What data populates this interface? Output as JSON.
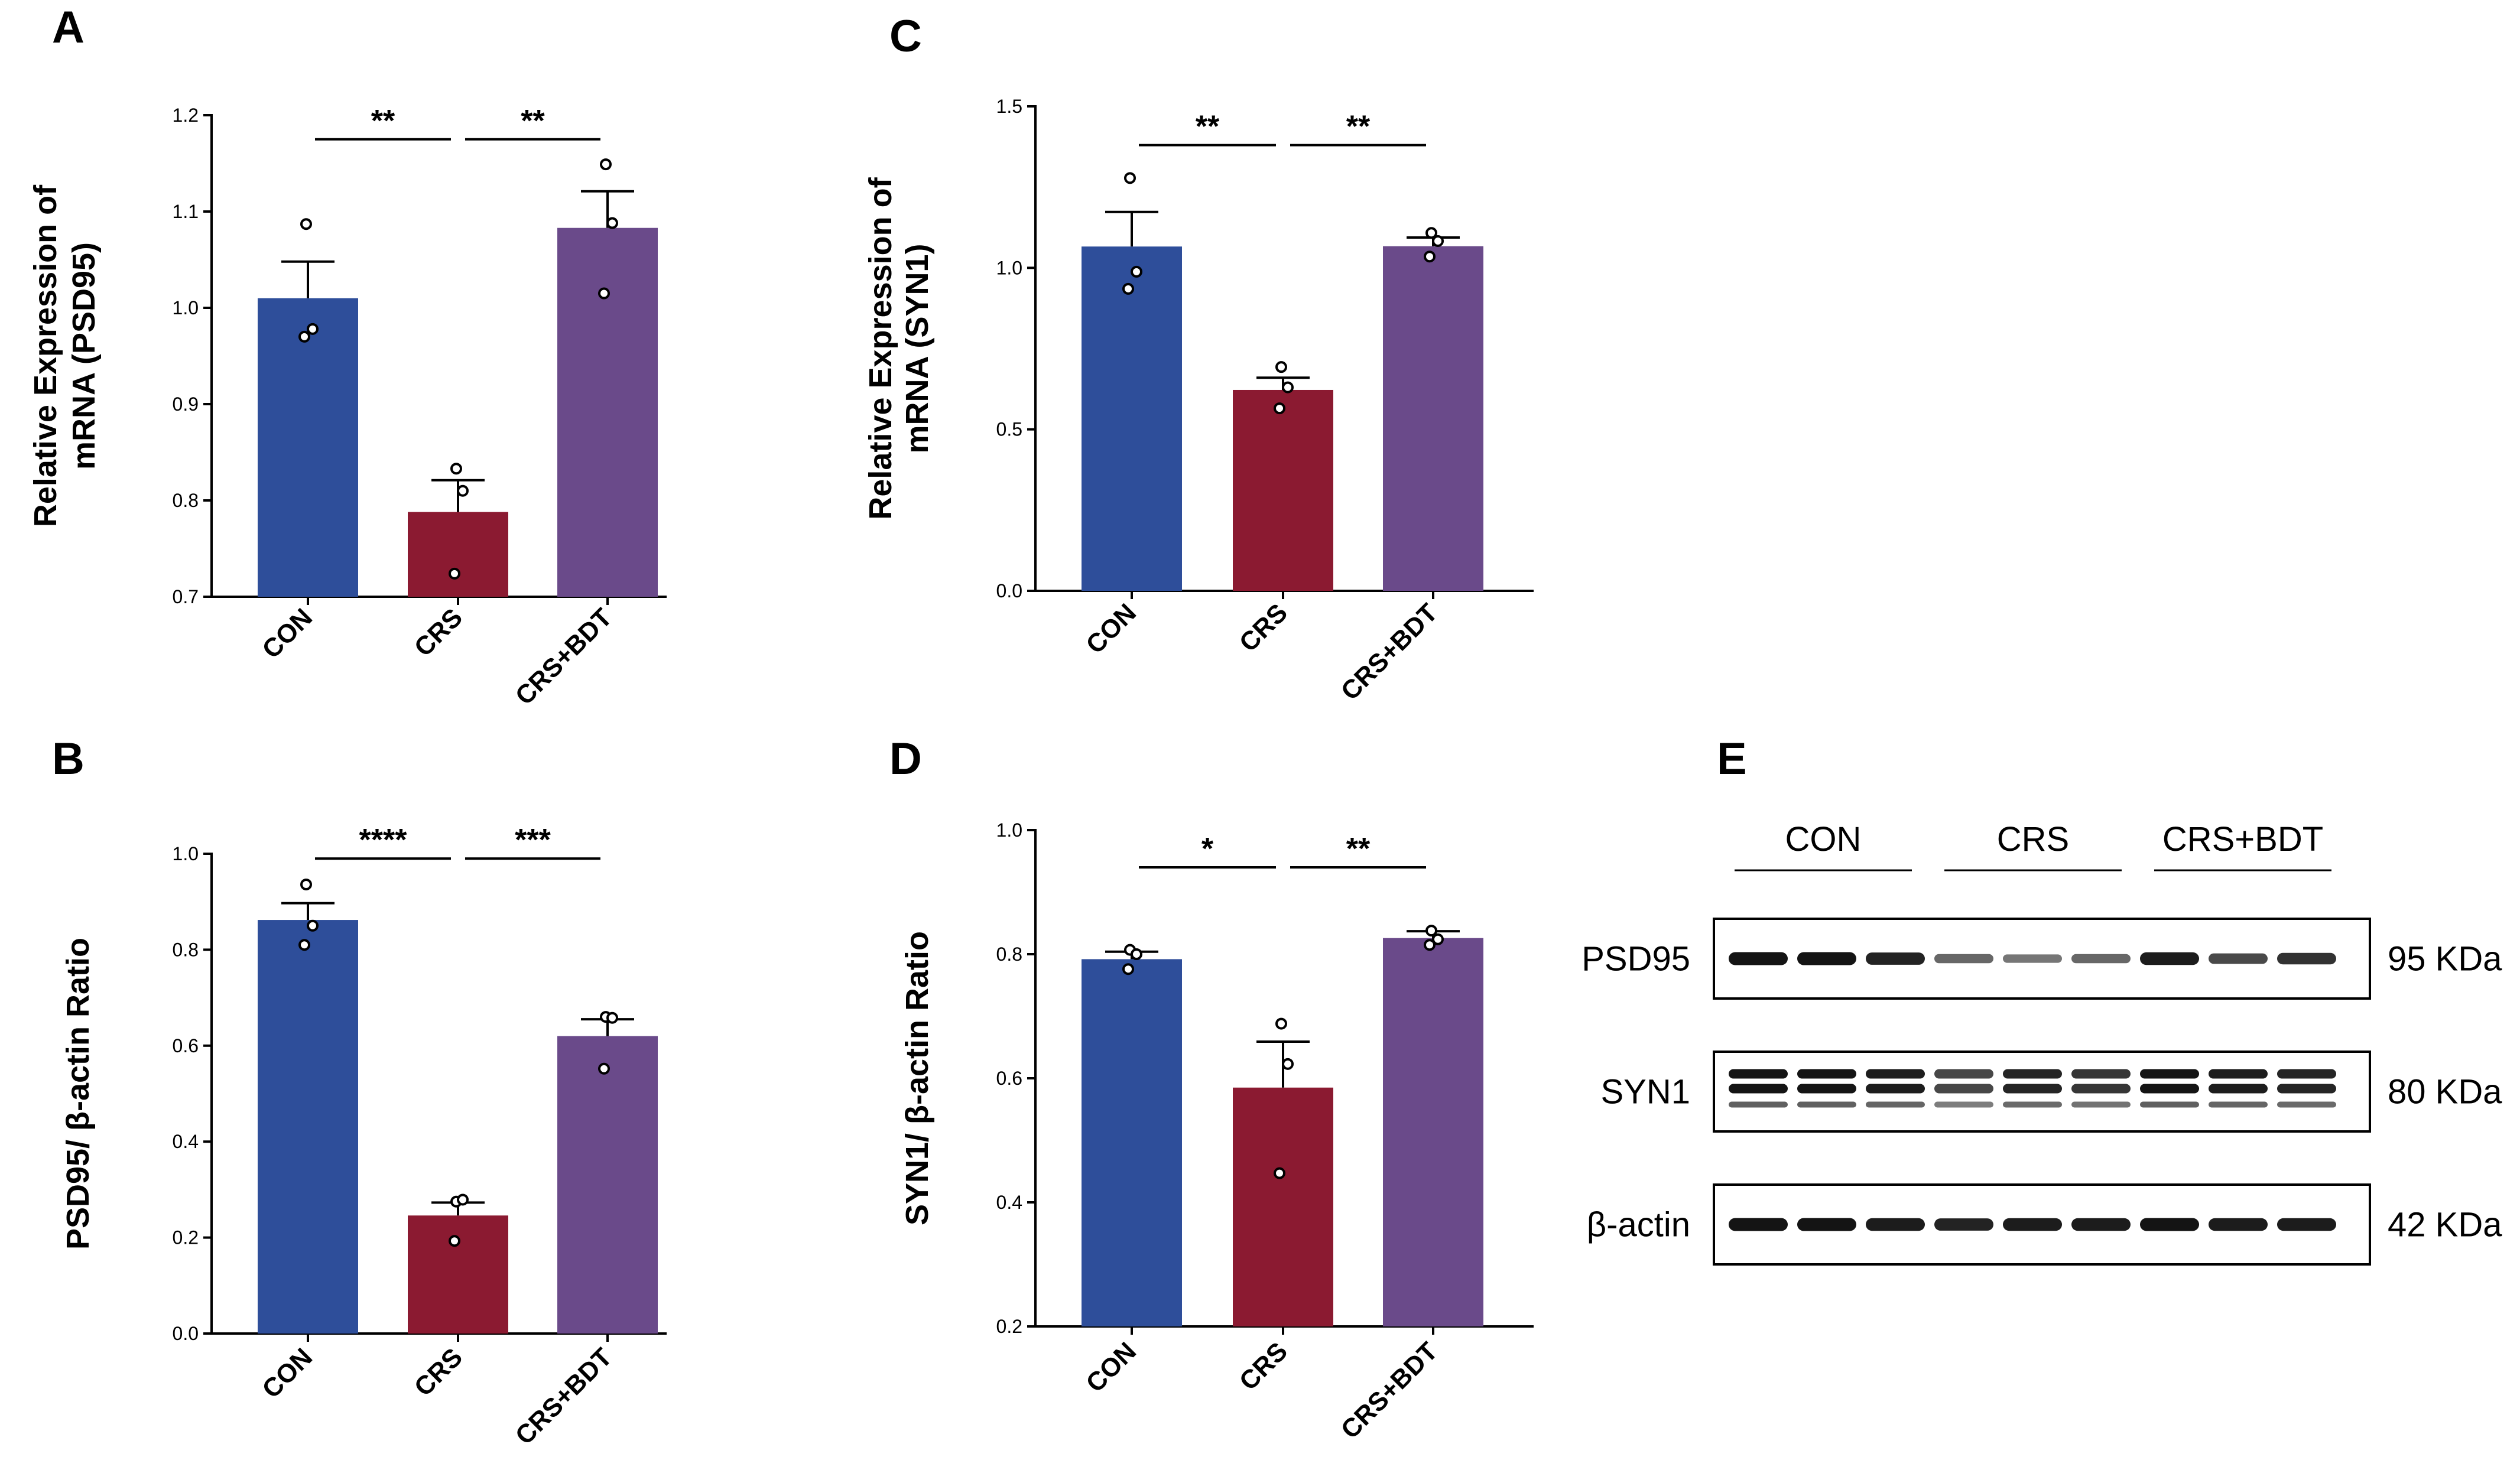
{
  "chart_data": [
    {
      "panel": "A",
      "type": "bar",
      "ylabel": "Relative Expression of mRNA (PSD95)",
      "ylabel_lines": [
        "Relative Expression of",
        "mRNA (PSD95)"
      ],
      "categories": [
        "CON",
        "CRS",
        "CRS+BDT"
      ],
      "colors": [
        "#2E4E9A",
        "#8B1A31",
        "#6A4A8A"
      ],
      "values": [
        1.01,
        0.788,
        1.083
      ],
      "errors": [
        0.038,
        0.033,
        0.038
      ],
      "points": [
        [
          1.087,
          0.978,
          0.97
        ],
        [
          0.833,
          0.81,
          0.724
        ],
        [
          1.149,
          1.088,
          1.015
        ]
      ],
      "ylim": [
        0.7,
        1.2
      ],
      "yticks": [
        0.7,
        0.8,
        0.9,
        1.0,
        1.1,
        1.2
      ],
      "ytick_labels": [
        "0.7",
        "0.8",
        "0.9",
        "1.0",
        "1.1",
        "1.2"
      ],
      "significance": [
        {
          "from": 0,
          "to": 1,
          "label": "**",
          "y": 1.175
        },
        {
          "from": 1,
          "to": 2,
          "label": "**",
          "y": 1.175
        }
      ]
    },
    {
      "panel": "B",
      "type": "bar",
      "ylabel": "PSD95/ β-actin Ratio",
      "ylabel_lines": [
        "PSD95/ β-actin Ratio"
      ],
      "categories": [
        "CON",
        "CRS",
        "CRS+BDT"
      ],
      "colors": [
        "#2E4E9A",
        "#8B1A31",
        "#6A4A8A"
      ],
      "values": [
        0.862,
        0.246,
        0.62
      ],
      "errors": [
        0.035,
        0.027,
        0.035
      ],
      "points": [
        [
          0.936,
          0.85,
          0.81
        ],
        [
          0.275,
          0.279,
          0.193
        ],
        [
          0.66,
          0.658,
          0.552
        ]
      ],
      "ylim": [
        0.0,
        1.0
      ],
      "yticks": [
        0.0,
        0.2,
        0.4,
        0.6,
        0.8,
        1.0
      ],
      "ytick_labels": [
        "0.0",
        "0.2",
        "0.4",
        "0.6",
        "0.8",
        "1.0"
      ],
      "significance": [
        {
          "from": 0,
          "to": 1,
          "label": "****",
          "y": 0.99
        },
        {
          "from": 1,
          "to": 2,
          "label": "***",
          "y": 0.99
        }
      ]
    },
    {
      "panel": "C",
      "type": "bar",
      "ylabel": "Relative Expression of mRNA (SYN1)",
      "ylabel_lines": [
        "Relative Expression of",
        "mRNA (SYN1)"
      ],
      "categories": [
        "CON",
        "CRS",
        "CRS+BDT"
      ],
      "colors": [
        "#2E4E9A",
        "#8B1A31",
        "#6A4A8A"
      ],
      "values": [
        1.066,
        0.622,
        1.067
      ],
      "errors": [
        0.107,
        0.038,
        0.027
      ],
      "points": [
        [
          1.278,
          0.988,
          0.935
        ],
        [
          0.693,
          0.63,
          0.565
        ],
        [
          1.108,
          1.083,
          1.035
        ]
      ],
      "ylim": [
        0.0,
        1.5
      ],
      "yticks": [
        0.0,
        0.5,
        1.0,
        1.5
      ],
      "ytick_labels": [
        "0.0",
        "0.5",
        "1.0",
        "1.5"
      ],
      "significance": [
        {
          "from": 0,
          "to": 1,
          "label": "**",
          "y": 1.38
        },
        {
          "from": 1,
          "to": 2,
          "label": "**",
          "y": 1.38
        }
      ]
    },
    {
      "panel": "D",
      "type": "bar",
      "ylabel": "SYN1/ β-actin Ratio",
      "ylabel_lines": [
        "SYN1/ β-actin Ratio"
      ],
      "categories": [
        "CON",
        "CRS",
        "CRS+BDT"
      ],
      "colors": [
        "#2E4E9A",
        "#8B1A31",
        "#6A4A8A"
      ],
      "values": [
        0.792,
        0.585,
        0.826
      ],
      "errors": [
        0.012,
        0.074,
        0.011
      ],
      "points": [
        [
          0.807,
          0.8,
          0.776
        ],
        [
          0.688,
          0.623,
          0.447
        ],
        [
          0.838,
          0.824,
          0.815
        ]
      ],
      "ylim": [
        0.2,
        1.0
      ],
      "yticks": [
        0.2,
        0.4,
        0.6,
        0.8,
        1.0
      ],
      "ytick_labels": [
        "0.2",
        "0.4",
        "0.6",
        "0.8",
        "1.0"
      ],
      "significance": [
        {
          "from": 0,
          "to": 1,
          "label": "*",
          "y": 0.94
        },
        {
          "from": 1,
          "to": 2,
          "label": "**",
          "y": 0.94
        }
      ]
    }
  ],
  "blot": {
    "panel": "E",
    "groups": [
      "CON",
      "CRS",
      "CRS+BDT"
    ],
    "rows": [
      {
        "label": "PSD95",
        "kda": "95 KDa",
        "intensity": [
          1.0,
          1.0,
          0.9,
          0.45,
          0.35,
          0.45,
          0.95,
          0.65,
          0.8
        ],
        "lines": 1
      },
      {
        "label": "SYN1",
        "kda": "80 KDa",
        "intensity": [
          1.0,
          1.0,
          0.95,
          0.7,
          0.9,
          0.8,
          1.0,
          0.95,
          0.9
        ],
        "lines": 3
      },
      {
        "label": "β-actin",
        "kda": "42 KDa",
        "intensity": [
          1.0,
          1.0,
          0.95,
          0.9,
          0.95,
          0.95,
          1.0,
          0.95,
          0.95
        ],
        "lines": 1
      }
    ]
  }
}
